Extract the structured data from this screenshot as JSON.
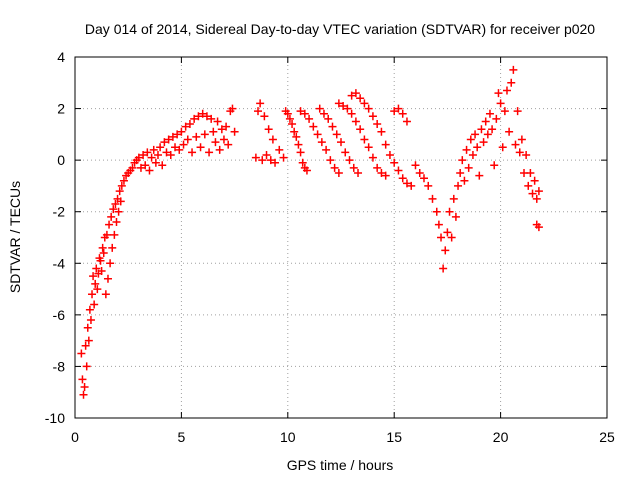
{
  "chart_data": {
    "type": "scatter",
    "title": "Day 014 of 2014, Sidereal Day-to-day VTEC variation (SDTVAR) for receiver p020",
    "xlabel": "GPS time / hours",
    "ylabel": "SDTVAR / TECUs",
    "xlim": [
      0,
      25
    ],
    "ylim": [
      -10,
      4
    ],
    "x_ticks": [
      "0",
      "5",
      "10",
      "15",
      "20",
      "25"
    ],
    "y_ticks": [
      "-10",
      "-8",
      "-6",
      "-4",
      "-2",
      "0",
      "2",
      "4"
    ],
    "x_tick_values": [
      0,
      5,
      10,
      15,
      20,
      25
    ],
    "y_tick_values": [
      -10,
      -8,
      -6,
      -4,
      -2,
      0,
      2,
      4
    ],
    "grid": true,
    "marker": "plus",
    "series": [
      {
        "name": "SDTVAR",
        "color": "#ff0000",
        "points": [
          [
            0.3,
            -7.5
          ],
          [
            0.35,
            -8.5
          ],
          [
            0.4,
            -9.1
          ],
          [
            0.45,
            -8.8
          ],
          [
            0.5,
            -7.2
          ],
          [
            0.55,
            -8.0
          ],
          [
            0.6,
            -6.5
          ],
          [
            0.65,
            -7.0
          ],
          [
            0.7,
            -5.8
          ],
          [
            0.75,
            -6.2
          ],
          [
            0.8,
            -5.2
          ],
          [
            0.85,
            -4.5
          ],
          [
            0.9,
            -5.6
          ],
          [
            0.95,
            -4.8
          ],
          [
            1.0,
            -4.2
          ],
          [
            1.05,
            -5.0
          ],
          [
            1.1,
            -4.4
          ],
          [
            1.15,
            -3.8
          ],
          [
            1.2,
            -3.9
          ],
          [
            1.25,
            -4.3
          ],
          [
            1.3,
            -3.4
          ],
          [
            1.35,
            -3.6
          ],
          [
            1.4,
            -3.0
          ],
          [
            1.45,
            -5.2
          ],
          [
            1.5,
            -2.9
          ],
          [
            1.55,
            -4.6
          ],
          [
            1.6,
            -2.5
          ],
          [
            1.65,
            -4.0
          ],
          [
            1.7,
            -2.2
          ],
          [
            1.75,
            -3.4
          ],
          [
            1.8,
            -1.9
          ],
          [
            1.85,
            -2.9
          ],
          [
            1.9,
            -1.7
          ],
          [
            1.95,
            -2.4
          ],
          [
            2.0,
            -1.5
          ],
          [
            2.05,
            -2.0
          ],
          [
            2.1,
            -1.2
          ],
          [
            2.15,
            -1.6
          ],
          [
            2.2,
            -1.0
          ],
          [
            2.3,
            -0.8
          ],
          [
            2.4,
            -0.6
          ],
          [
            2.5,
            -0.5
          ],
          [
            2.6,
            -0.4
          ],
          [
            2.7,
            -0.3
          ],
          [
            2.8,
            -0.1
          ],
          [
            2.9,
            0.0
          ],
          [
            3.0,
            0.1
          ],
          [
            3.1,
            -0.3
          ],
          [
            3.2,
            0.2
          ],
          [
            3.3,
            -0.2
          ],
          [
            3.4,
            0.3
          ],
          [
            3.5,
            -0.4
          ],
          [
            3.6,
            0.1
          ],
          [
            3.7,
            0.4
          ],
          [
            3.8,
            -0.1
          ],
          [
            3.9,
            0.2
          ],
          [
            4.0,
            0.5
          ],
          [
            4.1,
            -0.2
          ],
          [
            4.2,
            0.7
          ],
          [
            4.3,
            0.3
          ],
          [
            4.4,
            0.8
          ],
          [
            4.5,
            0.2
          ],
          [
            4.6,
            0.9
          ],
          [
            4.7,
            0.5
          ],
          [
            4.8,
            1.0
          ],
          [
            4.9,
            0.4
          ],
          [
            5.0,
            1.1
          ],
          [
            5.1,
            0.6
          ],
          [
            5.2,
            1.3
          ],
          [
            5.3,
            0.8
          ],
          [
            5.4,
            1.4
          ],
          [
            5.5,
            0.3
          ],
          [
            5.6,
            1.6
          ],
          [
            5.7,
            0.9
          ],
          [
            5.8,
            1.7
          ],
          [
            5.9,
            0.5
          ],
          [
            6.0,
            1.8
          ],
          [
            6.1,
            1.0
          ],
          [
            6.2,
            1.7
          ],
          [
            6.3,
            0.3
          ],
          [
            6.4,
            1.6
          ],
          [
            6.5,
            1.1
          ],
          [
            6.6,
            0.7
          ],
          [
            6.7,
            1.5
          ],
          [
            6.8,
            0.4
          ],
          [
            6.9,
            1.2
          ],
          [
            7.0,
            0.8
          ],
          [
            7.1,
            1.3
          ],
          [
            7.2,
            0.6
          ],
          [
            7.3,
            1.9
          ],
          [
            7.4,
            2.0
          ],
          [
            7.5,
            1.1
          ],
          [
            8.5,
            0.1
          ],
          [
            8.6,
            1.9
          ],
          [
            8.7,
            2.2
          ],
          [
            8.8,
            0.0
          ],
          [
            8.9,
            1.7
          ],
          [
            9.0,
            0.2
          ],
          [
            9.1,
            1.2
          ],
          [
            9.2,
            0.0
          ],
          [
            9.3,
            0.8
          ],
          [
            9.4,
            -0.1
          ],
          [
            9.6,
            0.4
          ],
          [
            9.8,
            0.1
          ],
          [
            9.9,
            1.9
          ],
          [
            10.0,
            1.8
          ],
          [
            10.1,
            1.6
          ],
          [
            10.2,
            1.4
          ],
          [
            10.3,
            1.1
          ],
          [
            10.4,
            0.9
          ],
          [
            10.5,
            0.6
          ],
          [
            10.6,
            0.3
          ],
          [
            10.7,
            -0.1
          ],
          [
            10.8,
            -0.3
          ],
          [
            10.9,
            -0.4
          ],
          [
            10.6,
            1.9
          ],
          [
            10.8,
            1.8
          ],
          [
            11.0,
            1.6
          ],
          [
            11.2,
            1.3
          ],
          [
            11.4,
            1.0
          ],
          [
            11.6,
            0.7
          ],
          [
            11.8,
            0.4
          ],
          [
            12.0,
            0.0
          ],
          [
            12.2,
            -0.3
          ],
          [
            12.4,
            -0.5
          ],
          [
            11.5,
            2.0
          ],
          [
            11.7,
            1.8
          ],
          [
            11.9,
            1.6
          ],
          [
            12.1,
            1.3
          ],
          [
            12.3,
            1.0
          ],
          [
            12.5,
            0.7
          ],
          [
            12.7,
            0.3
          ],
          [
            12.9,
            0.0
          ],
          [
            13.1,
            -0.3
          ],
          [
            13.3,
            -0.5
          ],
          [
            12.4,
            2.2
          ],
          [
            12.6,
            2.1
          ],
          [
            12.8,
            2.0
          ],
          [
            13.0,
            1.8
          ],
          [
            13.2,
            1.5
          ],
          [
            13.4,
            1.2
          ],
          [
            13.6,
            0.8
          ],
          [
            13.8,
            0.5
          ],
          [
            14.0,
            0.1
          ],
          [
            14.2,
            -0.3
          ],
          [
            14.4,
            -0.5
          ],
          [
            14.6,
            -0.6
          ],
          [
            13.0,
            2.5
          ],
          [
            13.2,
            2.6
          ],
          [
            13.4,
            2.4
          ],
          [
            13.6,
            2.2
          ],
          [
            13.8,
            2.0
          ],
          [
            14.0,
            1.7
          ],
          [
            14.2,
            1.4
          ],
          [
            14.4,
            1.1
          ],
          [
            14.6,
            0.6
          ],
          [
            14.8,
            0.2
          ],
          [
            15.0,
            -0.1
          ],
          [
            15.2,
            -0.4
          ],
          [
            15.4,
            -0.7
          ],
          [
            15.6,
            -0.9
          ],
          [
            15.8,
            -1.0
          ],
          [
            15.0,
            1.9
          ],
          [
            15.2,
            2.0
          ],
          [
            15.4,
            1.8
          ],
          [
            15.6,
            1.5
          ],
          [
            16.0,
            -0.2
          ],
          [
            16.2,
            -0.5
          ],
          [
            16.4,
            -0.7
          ],
          [
            16.6,
            -1.0
          ],
          [
            16.8,
            -1.5
          ],
          [
            17.0,
            -2.0
          ],
          [
            17.1,
            -2.5
          ],
          [
            17.2,
            -3.0
          ],
          [
            17.3,
            -4.2
          ],
          [
            17.4,
            -3.5
          ],
          [
            17.5,
            -2.8
          ],
          [
            17.6,
            -2.0
          ],
          [
            17.7,
            -3.0
          ],
          [
            17.8,
            -1.5
          ],
          [
            17.9,
            -2.2
          ],
          [
            18.0,
            -1.0
          ],
          [
            18.1,
            -0.5
          ],
          [
            18.2,
            0.0
          ],
          [
            18.3,
            -0.8
          ],
          [
            18.4,
            0.4
          ],
          [
            18.5,
            -0.3
          ],
          [
            18.6,
            0.8
          ],
          [
            18.7,
            0.2
          ],
          [
            18.8,
            1.0
          ],
          [
            18.9,
            0.5
          ],
          [
            19.0,
            -0.6
          ],
          [
            19.1,
            1.2
          ],
          [
            19.2,
            0.7
          ],
          [
            19.3,
            1.5
          ],
          [
            19.4,
            1.0
          ],
          [
            19.5,
            1.8
          ],
          [
            19.6,
            1.2
          ],
          [
            19.7,
            -0.2
          ],
          [
            19.8,
            1.6
          ],
          [
            19.9,
            2.6
          ],
          [
            20.0,
            2.2
          ],
          [
            20.1,
            0.5
          ],
          [
            20.2,
            1.9
          ],
          [
            20.3,
            2.7
          ],
          [
            20.4,
            1.1
          ],
          [
            20.5,
            3.0
          ],
          [
            20.6,
            3.5
          ],
          [
            20.7,
            0.6
          ],
          [
            20.8,
            1.9
          ],
          [
            20.9,
            0.3
          ],
          [
            21.0,
            0.8
          ],
          [
            21.1,
            -0.5
          ],
          [
            21.2,
            0.2
          ],
          [
            21.3,
            -1.0
          ],
          [
            21.4,
            -0.5
          ],
          [
            21.5,
            -1.3
          ],
          [
            21.6,
            -0.8
          ],
          [
            21.7,
            -1.5
          ],
          [
            21.8,
            -1.2
          ],
          [
            21.7,
            -2.5
          ],
          [
            21.8,
            -2.6
          ]
        ]
      }
    ]
  }
}
